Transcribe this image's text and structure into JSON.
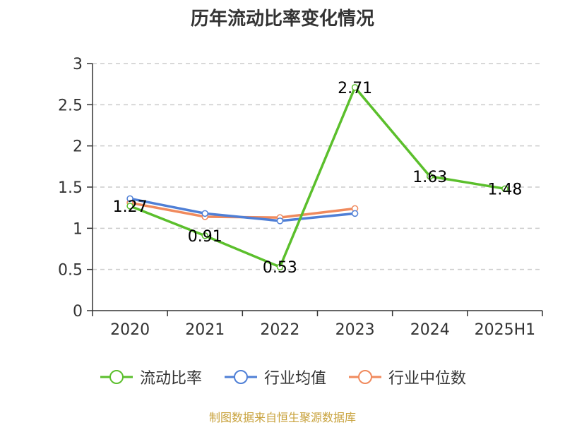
{
  "chart_data": {
    "type": "line",
    "title": "历年流动比率变化情况",
    "categories": [
      "2020",
      "2021",
      "2022",
      "2023",
      "2024",
      "2025H1"
    ],
    "y_ticks": [
      "0",
      "0.5",
      "1",
      "1.5",
      "2",
      "2.5",
      "3"
    ],
    "ylim": [
      0,
      3
    ],
    "grid": true,
    "legend_position": "bottom",
    "series": [
      {
        "name": "流动比率",
        "color": "#5bbf2c",
        "values": [
          1.27,
          0.91,
          0.53,
          2.71,
          1.63,
          1.48
        ],
        "labels": [
          "1.27",
          "0.91",
          "0.53",
          "2.71",
          "1.63",
          "1.48"
        ]
      },
      {
        "name": "行业均值",
        "color": "#4f7fd6",
        "values": [
          1.36,
          1.18,
          1.09,
          1.18,
          null,
          null
        ]
      },
      {
        "name": "行业中位数",
        "color": "#f08a5d",
        "values": [
          1.31,
          1.14,
          1.13,
          1.24,
          null,
          null
        ]
      }
    ],
    "source": "制图数据来自恒生聚源数据库"
  }
}
